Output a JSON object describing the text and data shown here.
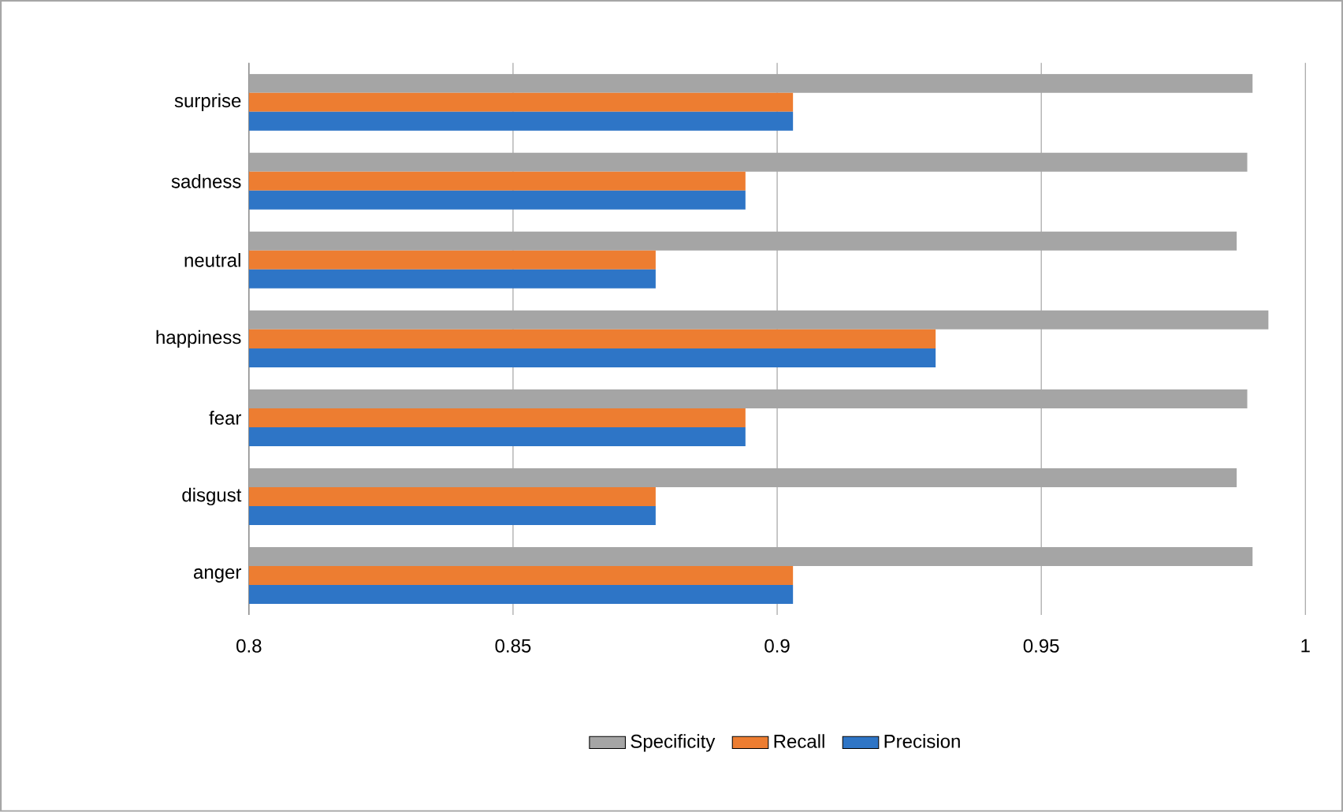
{
  "chart_data": {
    "type": "bar",
    "orientation": "horizontal",
    "categories": [
      "surprise",
      "sadness",
      "neutral",
      "happiness",
      "fear",
      "disgust",
      "anger"
    ],
    "series": [
      {
        "name": "Specificity",
        "color": "#a5a5a5",
        "values": [
          0.99,
          0.989,
          0.987,
          0.993,
          0.989,
          0.987,
          0.99
        ]
      },
      {
        "name": "Recall",
        "color": "#ed7d31",
        "values": [
          0.903,
          0.894,
          0.877,
          0.93,
          0.894,
          0.877,
          0.903
        ]
      },
      {
        "name": "Precision",
        "color": "#2e75c6",
        "values": [
          0.903,
          0.894,
          0.877,
          0.93,
          0.894,
          0.877,
          0.903
        ]
      }
    ],
    "xlim": [
      0.8,
      1
    ],
    "xticks": [
      0.8,
      0.85,
      0.9,
      0.95,
      1
    ],
    "grid": "x",
    "legend": "bottom"
  }
}
